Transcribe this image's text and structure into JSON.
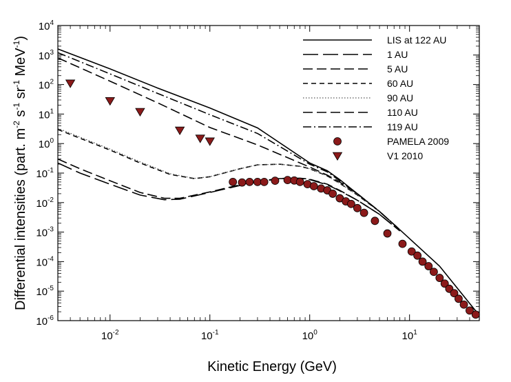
{
  "chart_data": {
    "type": "line",
    "title": "",
    "xlabel": "Kinetic Energy (GeV)",
    "ylabel_parts": {
      "main": "Differential intensities (part. m",
      "exp_m": "-2",
      "s": " s",
      "exp_s": "-1",
      "sr": " sr",
      "exp_sr": "-1",
      "mev": " MeV",
      "exp_mev": "-1",
      "close": ")"
    },
    "x_scale": "log",
    "y_scale": "log",
    "xlim": [
      0.003,
      50
    ],
    "ylim": [
      1e-06,
      10000
    ],
    "x_ticks": [
      {
        "value": 0.01,
        "base": "10",
        "exp": "-2"
      },
      {
        "value": 0.1,
        "base": "10",
        "exp": "-1"
      },
      {
        "value": 1,
        "base": "10",
        "exp": "0"
      },
      {
        "value": 10,
        "base": "10",
        "exp": "1"
      }
    ],
    "y_ticks": [
      {
        "value": 10000,
        "base": "10",
        "exp": "4"
      },
      {
        "value": 1000,
        "base": "10",
        "exp": "3"
      },
      {
        "value": 100,
        "base": "10",
        "exp": "2"
      },
      {
        "value": 10,
        "base": "10",
        "exp": "1"
      },
      {
        "value": 1,
        "base": "10",
        "exp": "0"
      },
      {
        "value": 0.1,
        "base": "10",
        "exp": "-1"
      },
      {
        "value": 0.01,
        "base": "10",
        "exp": "-2"
      },
      {
        "value": 0.001,
        "base": "10",
        "exp": "-3"
      },
      {
        "value": 0.0001,
        "base": "10",
        "exp": "-4"
      },
      {
        "value": 1e-05,
        "base": "10",
        "exp": "-5"
      },
      {
        "value": 1e-06,
        "base": "10",
        "exp": "-6"
      }
    ],
    "series": [
      {
        "name": "LIS at 122 AU",
        "style": "solid",
        "color": "#000000",
        "x": [
          0.003,
          0.01,
          0.03,
          0.1,
          0.3,
          1.0,
          1.5,
          2,
          3,
          5,
          8,
          20,
          50
        ],
        "y": [
          1600,
          340,
          76,
          16,
          3.4,
          0.22,
          0.12,
          0.06,
          0.02,
          0.005,
          0.0012,
          7e-05,
          1.5e-06
        ]
      },
      {
        "name": "1 AU",
        "style": "longdash",
        "color": "#000000",
        "x": [
          0.003,
          0.005,
          0.01,
          0.02,
          0.035,
          0.05,
          0.1,
          0.2,
          0.3,
          0.5,
          0.8,
          1.0,
          1.5,
          2,
          3,
          5,
          8
        ],
        "y": [
          0.22,
          0.1,
          0.042,
          0.018,
          0.0125,
          0.013,
          0.022,
          0.038,
          0.05,
          0.065,
          0.066,
          0.06,
          0.04,
          0.025,
          0.012,
          0.004,
          0.0011
        ]
      },
      {
        "name": "5 AU",
        "style": "dash",
        "color": "#000000",
        "x": [
          0.003,
          0.005,
          0.01,
          0.02,
          0.035,
          0.05,
          0.1,
          0.2,
          0.3,
          0.5,
          0.8,
          1.0,
          1.5,
          2,
          3,
          5,
          8
        ],
        "y": [
          0.3,
          0.14,
          0.055,
          0.022,
          0.014,
          0.014,
          0.023,
          0.04,
          0.052,
          0.066,
          0.067,
          0.062,
          0.042,
          0.026,
          0.012,
          0.004,
          0.0011
        ]
      },
      {
        "name": "60 AU",
        "style": "shortdash",
        "color": "#000000",
        "x": [
          0.003,
          0.01,
          0.02,
          0.04,
          0.07,
          0.1,
          0.2,
          0.3,
          0.5,
          0.8,
          1.0,
          1.5,
          2,
          3,
          5,
          8
        ],
        "y": [
          3.0,
          0.6,
          0.22,
          0.09,
          0.065,
          0.075,
          0.14,
          0.19,
          0.2,
          0.17,
          0.14,
          0.08,
          0.045,
          0.018,
          0.005,
          0.0012
        ]
      },
      {
        "name": "90 AU",
        "style": "dotted",
        "color": "#555555",
        "x": [
          0.003,
          0.01,
          0.02,
          0.04,
          0.07,
          0.1,
          0.2,
          0.3,
          0.5,
          0.8,
          1.0,
          1.5,
          2,
          3,
          5,
          8
        ],
        "y": [
          3.3,
          0.65,
          0.24,
          0.095,
          0.066,
          0.075,
          0.14,
          0.19,
          0.2,
          0.17,
          0.14,
          0.08,
          0.045,
          0.018,
          0.005,
          0.0012
        ]
      },
      {
        "name": "110 AU",
        "style": "dash",
        "color": "#000000",
        "x": [
          0.003,
          0.01,
          0.03,
          0.1,
          0.3,
          1.0,
          1.5,
          2,
          3,
          5,
          8
        ],
        "y": [
          800,
          130,
          24,
          3.5,
          0.9,
          0.16,
          0.085,
          0.05,
          0.02,
          0.005,
          0.0012
        ]
      },
      {
        "name": "119 AU",
        "style": "dashdot",
        "color": "#000000",
        "x": [
          0.003,
          0.01,
          0.03,
          0.1,
          0.3,
          1.0,
          1.5,
          2,
          3,
          5,
          8
        ],
        "y": [
          1200,
          230,
          50,
          9.5,
          2.2,
          0.2,
          0.11,
          0.055,
          0.02,
          0.005,
          0.0012
        ]
      }
    ],
    "points": [
      {
        "name": "PAMELA 2009",
        "marker": "circle",
        "color": "#8b1a1a",
        "x": [
          0.17,
          0.21,
          0.25,
          0.3,
          0.35,
          0.45,
          0.6,
          0.7,
          0.8,
          0.95,
          1.1,
          1.3,
          1.5,
          1.7,
          2.0,
          2.3,
          2.6,
          3.0,
          3.5,
          4.5,
          6.0,
          8.5,
          10.5,
          12,
          13.5,
          15.5,
          17.5,
          20,
          22.5,
          25,
          28,
          31,
          35,
          40,
          46
        ],
        "y": [
          0.05,
          0.048,
          0.05,
          0.05,
          0.05,
          0.055,
          0.058,
          0.056,
          0.05,
          0.042,
          0.036,
          0.03,
          0.026,
          0.02,
          0.014,
          0.011,
          0.009,
          0.0065,
          0.0045,
          0.0024,
          0.0009,
          0.0004,
          0.00022,
          0.00016,
          0.0001,
          7e-05,
          4.5e-05,
          2.8e-05,
          1.8e-05,
          1.2e-05,
          8.5e-06,
          5.5e-06,
          3.5e-06,
          2.2e-06,
          1.6e-06
        ]
      },
      {
        "name": "V1 2010",
        "marker": "triangle-down",
        "color": "#8b1a1a",
        "x": [
          0.004,
          0.01,
          0.02,
          0.05,
          0.08,
          0.1
        ],
        "y": [
          110,
          28,
          12,
          2.8,
          1.5,
          1.2
        ]
      }
    ],
    "legend": "top-right"
  }
}
